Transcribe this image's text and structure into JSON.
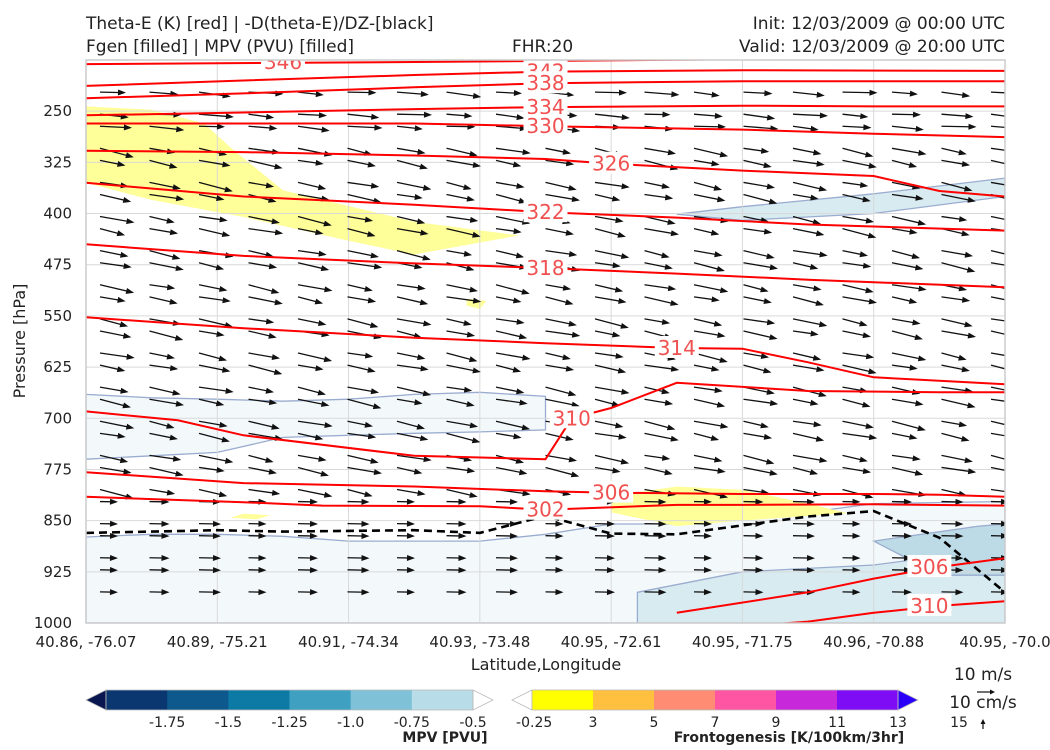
{
  "header": {
    "title_left_1": "Theta-E (K) [red] | -D(theta-E)/DZ-[black]",
    "title_left_2": "Fgen [filled] | MPV (PVU) [filled]",
    "fhr": "FHR:20",
    "init": "Init: 12/03/2009 @ 00:00 UTC",
    "valid": "Valid: 12/03/2009 @ 20:00 UTC"
  },
  "chart_data": {
    "type": "cross-section",
    "xlabel": "Latitude,Longitude",
    "ylabel": "Pressure [hPa]",
    "ylim": [
      1000,
      175
    ],
    "y_scale": "linear (pressure, inverted)",
    "grid": true,
    "y_ticks": [
      250,
      325,
      400,
      475,
      550,
      625,
      700,
      775,
      850,
      925,
      1000
    ],
    "x_tick_labels": [
      "40.86, -76.07",
      "40.89, -75.21",
      "40.91, -74.34",
      "40.93, -73.48",
      "40.95, -72.61",
      "40.95, -71.75",
      "40.96, -70.88",
      "40.95, -70.0"
    ],
    "theta_e_contours": {
      "color": "#ff0000",
      "levels": [
        {
          "label": "346",
          "points": [
            [
              0,
              181
            ],
            [
              2.5,
              178
            ],
            [
              5,
              174
            ]
          ]
        },
        {
          "label": "342",
          "points": [
            [
              0,
              213
            ],
            [
              1.2,
              205
            ],
            [
              2.5,
              197
            ],
            [
              3.5,
              192
            ],
            [
              5,
              190
            ],
            [
              7,
              191
            ]
          ]
        },
        {
          "label": "338",
          "points": [
            [
              0,
              231
            ],
            [
              1.2,
              224
            ],
            [
              2.5,
              215
            ],
            [
              3.5,
              209
            ],
            [
              5,
              206
            ],
            [
              6,
              206
            ],
            [
              7,
              206
            ]
          ]
        },
        {
          "label": "334",
          "points": [
            [
              0,
              256
            ],
            [
              1.2,
              252
            ],
            [
              2.5,
              247
            ],
            [
              3.5,
              244
            ],
            [
              5,
              242
            ],
            [
              6,
              243
            ],
            [
              7,
              243
            ]
          ]
        },
        {
          "label": "330",
          "points": [
            [
              0,
              268
            ],
            [
              1.2,
              268
            ],
            [
              2.5,
              268
            ],
            [
              3.5,
              272
            ],
            [
              5,
              277
            ],
            [
              6,
              283
            ],
            [
              7,
              288
            ]
          ]
        },
        {
          "label": "326",
          "points": [
            [
              0,
              308
            ],
            [
              1.2,
              310
            ],
            [
              2.5,
              315
            ],
            [
              3.5,
              320
            ],
            [
              4,
              327
            ],
            [
              5,
              337
            ],
            [
              6,
              345
            ],
            [
              6.5,
              367
            ],
            [
              7,
              375
            ]
          ]
        },
        {
          "label": "322",
          "points": [
            [
              0,
              355
            ],
            [
              1.2,
              375
            ],
            [
              2.5,
              387
            ],
            [
              3.5,
              398
            ],
            [
              4.5,
              406
            ],
            [
              5.5,
              416
            ],
            [
              7,
              425
            ]
          ]
        },
        {
          "label": "318",
          "points": [
            [
              0,
              445
            ],
            [
              1.2,
              462
            ],
            [
              2.5,
              473
            ],
            [
              3.5,
              480
            ],
            [
              4.5,
              488
            ],
            [
              5.5,
              497
            ],
            [
              7,
              508
            ]
          ]
        },
        {
          "label": "314",
          "points": [
            [
              0,
              552
            ],
            [
              1.2,
              568
            ],
            [
              2.5,
              582
            ],
            [
              3.5,
              590
            ],
            [
              4.5,
              597
            ],
            [
              5,
              598
            ],
            [
              5.5,
              618
            ],
            [
              6,
              640
            ],
            [
              7,
              650
            ]
          ]
        },
        {
          "label": "310",
          "points": [
            [
              0,
              690
            ],
            [
              0.7,
              703
            ],
            [
              1.2,
              725
            ],
            [
              2.5,
              755
            ],
            [
              3.5,
              760
            ],
            [
              3.7,
              700
            ],
            [
              4,
              685
            ],
            [
              4.5,
              648
            ],
            [
              5.5,
              660
            ],
            [
              6.5,
              662
            ],
            [
              7,
              662
            ]
          ]
        },
        {
          "label": "306",
          "points": [
            [
              0,
              779
            ],
            [
              1.2,
              795
            ],
            [
              2.5,
              800
            ],
            [
              3.5,
              807
            ],
            [
              4,
              809
            ],
            [
              5,
              811
            ],
            [
              6,
              811
            ],
            [
              6.5,
              812
            ],
            [
              7,
              815
            ]
          ]
        },
        {
          "label": "302",
          "points": [
            [
              0,
              815
            ],
            [
              1.2,
              823
            ],
            [
              1.8,
              828
            ],
            [
              3,
              829
            ],
            [
              3.5,
              834
            ],
            [
              4.5,
              827
            ],
            [
              5,
              827
            ],
            [
              6,
              826
            ],
            [
              7,
              828
            ]
          ]
        },
        {
          "label": "306",
          "points": [
            [
              4.5,
              985
            ],
            [
              5.5,
              955
            ],
            [
              6,
              935
            ],
            [
              6.5,
              918
            ],
            [
              7,
              905
            ]
          ]
        },
        {
          "label": "310",
          "points": [
            [
              5,
              1005
            ],
            [
              5.5,
              998
            ],
            [
              6,
              985
            ],
            [
              6.5,
              975
            ],
            [
              7,
              968
            ]
          ]
        }
      ]
    },
    "dthetae_dz_zero_contour": {
      "color": "#000000",
      "style": "dashed",
      "points": [
        [
          0,
          868
        ],
        [
          0.5,
          866
        ],
        [
          1,
          864
        ],
        [
          1.5,
          866
        ],
        [
          2,
          865
        ],
        [
          2.5,
          864
        ],
        [
          3,
          868
        ],
        [
          3.5,
          843
        ],
        [
          4,
          869
        ],
        [
          4.5,
          870
        ],
        [
          5,
          857
        ],
        [
          5.5,
          844
        ],
        [
          6,
          836
        ],
        [
          6.5,
          875
        ],
        [
          7,
          955
        ]
      ]
    },
    "mpv_negative_regions": [
      {
        "level": -0.25,
        "color": "#f3f9fb",
        "points": [
          [
            0,
            665
          ],
          [
            0.5,
            670
          ],
          [
            1,
            672
          ],
          [
            1.5,
            675
          ],
          [
            2,
            672
          ],
          [
            2.5,
            665
          ],
          [
            3,
            662
          ],
          [
            3.5,
            668
          ],
          [
            3.5,
            717
          ],
          [
            3,
            720
          ],
          [
            2.5,
            722
          ],
          [
            2,
            725
          ],
          [
            1.5,
            728
          ],
          [
            1,
            750
          ],
          [
            0.5,
            755
          ],
          [
            0,
            760
          ]
        ]
      },
      {
        "level": -0.25,
        "color": "#f3f9fb",
        "points": [
          [
            0,
            874
          ],
          [
            0.5,
            870
          ],
          [
            1,
            870
          ],
          [
            1.5,
            873
          ],
          [
            2,
            880
          ],
          [
            3,
            880
          ],
          [
            3.5,
            870
          ],
          [
            4,
            855
          ],
          [
            4.5,
            855
          ],
          [
            5,
            848
          ],
          [
            5.5,
            838
          ],
          [
            6,
            825
          ],
          [
            7,
            822
          ],
          [
            7,
            1000
          ],
          [
            0,
            1000
          ]
        ]
      },
      {
        "level": -0.5,
        "color": "#d8ebf1",
        "points": [
          [
            4.2,
            955
          ],
          [
            5,
            925
          ],
          [
            6,
            915
          ],
          [
            7,
            890
          ],
          [
            7,
            1000
          ],
          [
            4.2,
            1000
          ]
        ]
      },
      {
        "level": -0.5,
        "color": "#d8ebf1",
        "points": [
          [
            4.5,
            401
          ],
          [
            5,
            390
          ],
          [
            6,
            371
          ],
          [
            7,
            348
          ],
          [
            7,
            375
          ],
          [
            6,
            400
          ],
          [
            5,
            410
          ]
        ]
      },
      {
        "level": -0.75,
        "color": "#bddbe6",
        "points": [
          [
            6,
            880
          ],
          [
            6.8,
            858
          ],
          [
            7,
            855
          ],
          [
            7,
            930
          ],
          [
            6.5,
            930
          ]
        ]
      }
    ],
    "frontogenesis_regions": [
      {
        "level": 3,
        "color": "#ffff99",
        "points": [
          [
            0,
            243
          ],
          [
            0.5,
            248
          ],
          [
            0.9,
            268
          ],
          [
            1.1,
            303
          ],
          [
            1.5,
            366
          ],
          [
            2.5,
            412
          ],
          [
            3.3,
            432
          ],
          [
            2.5,
            460
          ],
          [
            2,
            440
          ],
          [
            1.2,
            405
          ],
          [
            0.5,
            380
          ],
          [
            0,
            355
          ]
        ]
      },
      {
        "level": 3,
        "color": "#ffff99",
        "points": [
          [
            2.9,
            525
          ],
          [
            3.05,
            528
          ],
          [
            3.0,
            540
          ],
          [
            2.9,
            535
          ]
        ]
      },
      {
        "level": 3,
        "color": "#ffff99",
        "points": [
          [
            4,
            814
          ],
          [
            4.5,
            800
          ],
          [
            5,
            805
          ],
          [
            5.5,
            825
          ],
          [
            5.8,
            839
          ],
          [
            5,
            850
          ],
          [
            4.5,
            858
          ],
          [
            4,
            838
          ]
        ]
      },
      {
        "level": 3,
        "color": "#ffff99",
        "points": [
          [
            1.1,
            846
          ],
          [
            1.2,
            840
          ],
          [
            1.4,
            842
          ],
          [
            1.3,
            848
          ]
        ]
      }
    ],
    "wind_vectors": {
      "color": "#111111",
      "reference_speed": "10 m/s",
      "reference_w": "10 cm/s",
      "levels": [
        225,
        250,
        275,
        300,
        325,
        350,
        375,
        400,
        425,
        450,
        475,
        500,
        525,
        550,
        575,
        600,
        625,
        650,
        675,
        700,
        725,
        750,
        775,
        800,
        825,
        850,
        875,
        900,
        925,
        950
      ],
      "columns": 19,
      "direction": "west-to-east, slight downward tilt, weaker and more horizontal at low levels"
    }
  },
  "colorbars": {
    "mpv": {
      "label": "MPV [PVU]",
      "ticks": [
        "-1.75",
        "-1.5",
        "-1.25",
        "-1.0",
        "-0.75",
        "-0.5",
        "-0.25"
      ],
      "colors": [
        "#08174f",
        "#0b3770",
        "#0d588c",
        "#0d7aa6",
        "#3fa0c2",
        "#7fc2d7",
        "#b8dde8",
        "#ffffff"
      ]
    },
    "fgen": {
      "label": "Frontogenesis [K/100km/3hr]",
      "ticks": [
        "3",
        "5",
        "7",
        "9",
        "11",
        "13",
        "15"
      ],
      "colors": [
        "#ffffff",
        "#ffff00",
        "#ffc040",
        "#ff8c73",
        "#ff55a3",
        "#c728d9",
        "#7e0cf5",
        "#2a00f8"
      ]
    }
  },
  "reference_vectors": {
    "horizontal": "10 m/s",
    "vertical": "10 cm/s"
  }
}
